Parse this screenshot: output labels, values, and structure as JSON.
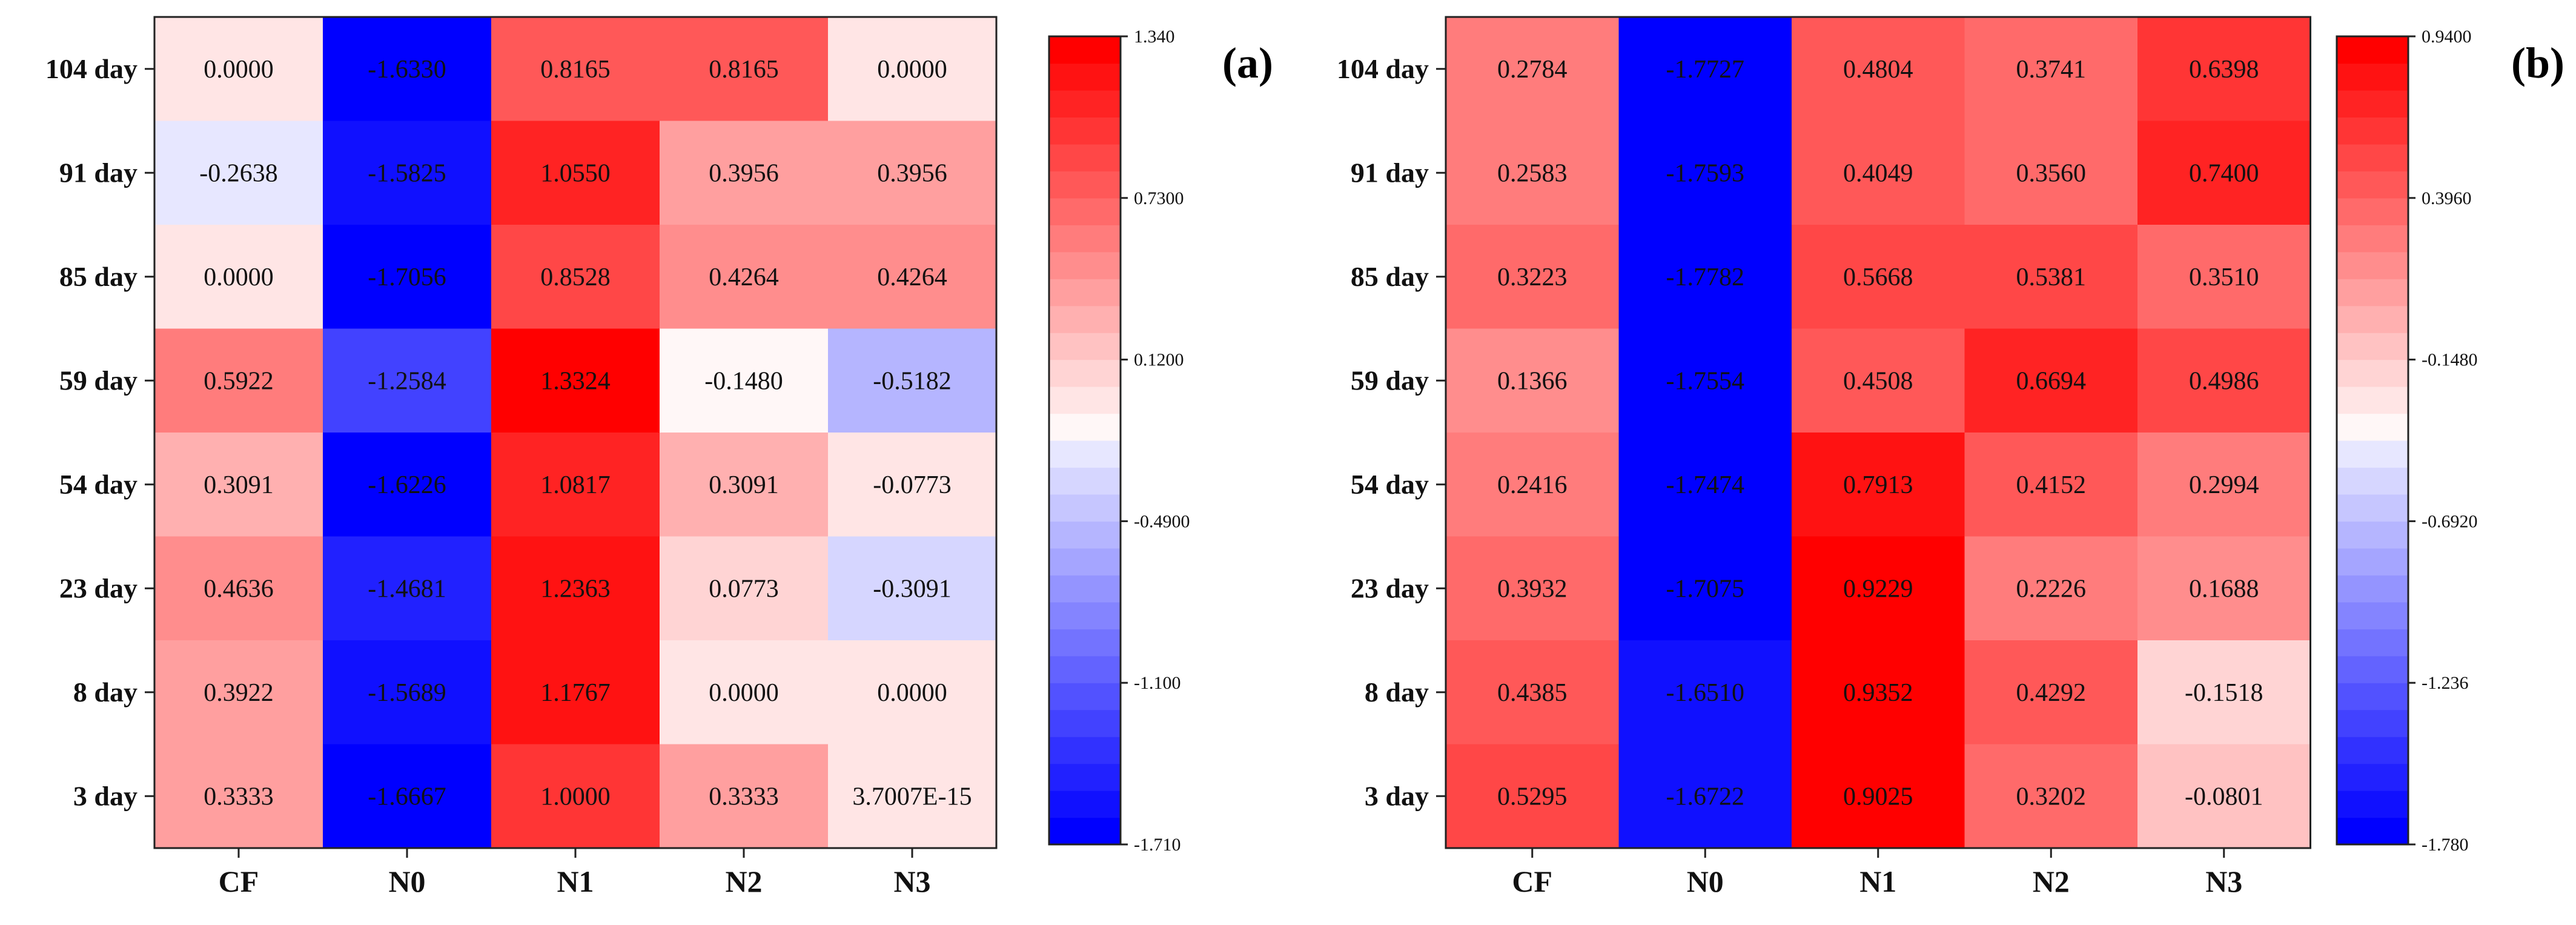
{
  "chart_data": [
    {
      "type": "heatmap",
      "panel_label": "(a)",
      "rows": [
        "104 day",
        "91 day",
        "85 day",
        "59 day",
        "54 day",
        "23 day",
        "8 day",
        "3 day"
      ],
      "columns": [
        "CF",
        "N0",
        "N1",
        "N2",
        "N3"
      ],
      "cells": [
        [
          "0.0000",
          "-1.6330",
          "0.8165",
          "0.8165",
          "0.0000"
        ],
        [
          "-0.2638",
          "-1.5825",
          "1.0550",
          "0.3956",
          "0.3956"
        ],
        [
          "0.0000",
          "-1.7056",
          "0.8528",
          "0.4264",
          "0.4264"
        ],
        [
          "0.5922",
          "-1.2584",
          "1.3324",
          "-0.1480",
          "-0.5182"
        ],
        [
          "0.3091",
          "-1.6226",
          "1.0817",
          "0.3091",
          "-0.0773"
        ],
        [
          "0.4636",
          "-1.4681",
          "1.2363",
          "0.0773",
          "-0.3091"
        ],
        [
          "0.3922",
          "-1.5689",
          "1.1767",
          "0.0000",
          "0.0000"
        ],
        [
          "0.3333",
          "-1.6667",
          "1.0000",
          "0.3333",
          "3.7007E-15"
        ]
      ],
      "colorbar": {
        "min": -1.71,
        "max": 1.34,
        "ticks": [
          "1.340",
          "0.7300",
          "0.1200",
          "-0.4900",
          "-1.100",
          "-1.710"
        ],
        "tick_values": [
          1.34,
          0.73,
          0.12,
          -0.49,
          -1.1,
          -1.71
        ]
      }
    },
    {
      "type": "heatmap",
      "panel_label": "(b)",
      "rows": [
        "104 day",
        "91 day",
        "85 day",
        "59 day",
        "54 day",
        "23 day",
        "8 day",
        "3 day"
      ],
      "columns": [
        "CF",
        "N0",
        "N1",
        "N2",
        "N3"
      ],
      "cells": [
        [
          "0.2784",
          "-1.7727",
          "0.4804",
          "0.3741",
          "0.6398"
        ],
        [
          "0.2583",
          "-1.7593",
          "0.4049",
          "0.3560",
          "0.7400"
        ],
        [
          "0.3223",
          "-1.7782",
          "0.5668",
          "0.5381",
          "0.3510"
        ],
        [
          "0.1366",
          "-1.7554",
          "0.4508",
          "0.6694",
          "0.4986"
        ],
        [
          "0.2416",
          "-1.7474",
          "0.7913",
          "0.4152",
          "0.2994"
        ],
        [
          "0.3932",
          "-1.7075",
          "0.9229",
          "0.2226",
          "0.1688"
        ],
        [
          "0.4385",
          "-1.6510",
          "0.9352",
          "0.4292",
          "-0.1518"
        ],
        [
          "0.5295",
          "-1.6722",
          "0.9025",
          "0.3202",
          "-0.0801"
        ]
      ],
      "colorbar": {
        "min": -1.78,
        "max": 0.94,
        "ticks": [
          "0.9400",
          "0.3960",
          "-0.1480",
          "-0.6920",
          "-1.236",
          "-1.780"
        ],
        "tick_values": [
          0.94,
          0.396,
          -0.148,
          -0.692,
          -1.236,
          -1.78
        ]
      }
    }
  ]
}
